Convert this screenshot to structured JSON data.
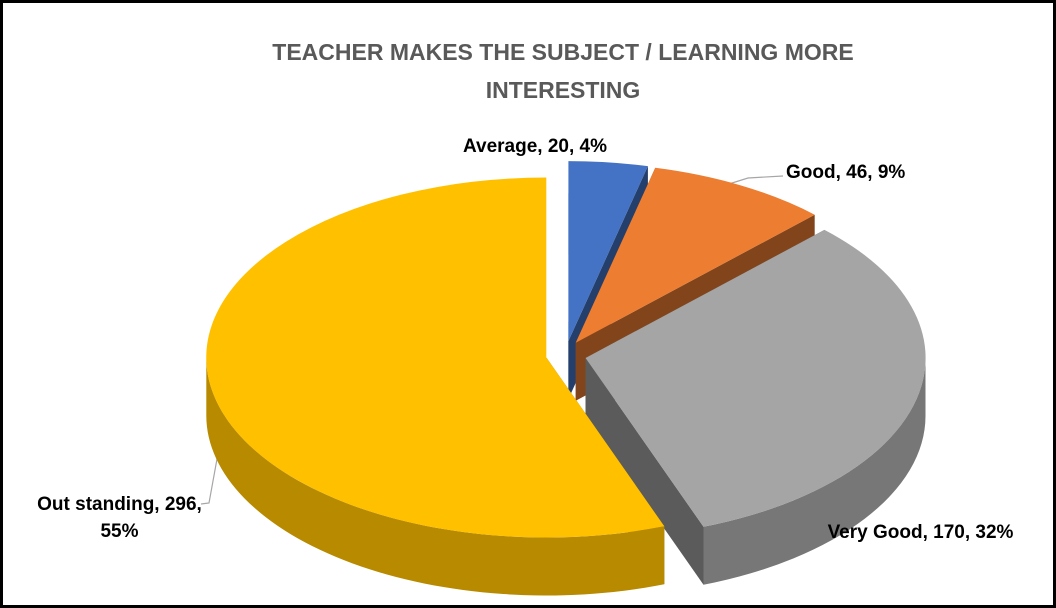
{
  "chart_data": {
    "type": "pie3d",
    "title": "TEACHER MAKES THE SUBJECT / LEARNING MORE INTERESTING",
    "categories": [
      "Average",
      "Good",
      "Very Good",
      "Out standing"
    ],
    "values": [
      20,
      46,
      170,
      296
    ],
    "value_labels": [
      "Average, 20, 4%",
      "Good, 46, 9%",
      "Very Good, 170, 32%",
      "Out standing, 296, 55%"
    ],
    "colors": [
      "#4472c4",
      "#ed7d31",
      "#a5a5a5",
      "#ffc000"
    ]
  }
}
